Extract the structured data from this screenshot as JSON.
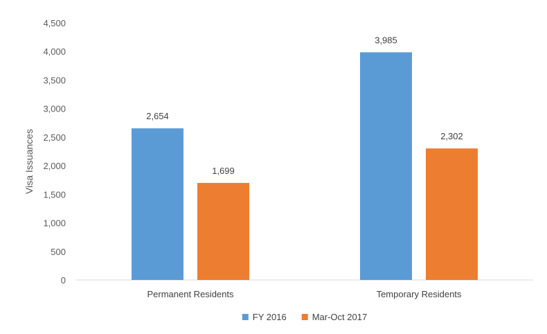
{
  "chart_data": {
    "type": "bar",
    "title": "",
    "xlabel": "",
    "ylabel": "Visa Issuances",
    "categories": [
      "Permanent Residents",
      "Temporary Residents"
    ],
    "series": [
      {
        "name": "FY 2016",
        "color": "#5B9BD5",
        "values": [
          2654,
          3985
        ],
        "labels": [
          "2,654",
          "3,985"
        ]
      },
      {
        "name": "Mar-Oct 2017",
        "color": "#ED7D31",
        "values": [
          1699,
          2302
        ],
        "labels": [
          "1,699",
          "2,302"
        ]
      }
    ],
    "ylim": [
      0,
      4500
    ],
    "yticks": [
      0,
      500,
      1000,
      1500,
      2000,
      2500,
      3000,
      3500,
      4000,
      4500
    ],
    "ytick_labels": [
      "0",
      "500",
      "1,000",
      "1,500",
      "2,000",
      "2,500",
      "3,000",
      "3,500",
      "4,000",
      "4,500"
    ],
    "grid": false,
    "legend_position": "bottom"
  }
}
